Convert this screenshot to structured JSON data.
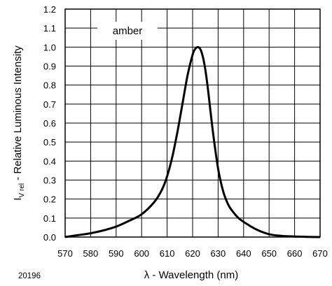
{
  "chart_data": {
    "type": "line",
    "title": "",
    "xlabel": "λ - Wavelength (nm)",
    "ylabel_main": "I",
    "ylabel_sub": "V rel",
    "ylabel_rest": " - Relative Luminous Intensity",
    "xlim": [
      570,
      670
    ],
    "ylim": [
      0,
      1.2
    ],
    "xticks": [
      "570",
      "580",
      "590",
      "600",
      "610",
      "620",
      "630",
      "640",
      "650",
      "660",
      "670"
    ],
    "yticks": [
      "0.0",
      "0.1",
      "0.2",
      "0.3",
      "0.4",
      "0.5",
      "0.6",
      "0.7",
      "0.8",
      "0.9",
      "1.0",
      "1.1",
      "1.2"
    ],
    "grid": true,
    "annotation": "amber",
    "figure_id": "20196",
    "series": [
      {
        "x": [
          570,
          575,
          580,
          585,
          590,
          595,
          600,
          605,
          608,
          610,
          612,
          614,
          616,
          618,
          620,
          621,
          622,
          623,
          624,
          625,
          626,
          628,
          630,
          632,
          634,
          636,
          638,
          640,
          645,
          650,
          655,
          660,
          665,
          670
        ],
        "y": [
          0.0,
          0.01,
          0.02,
          0.035,
          0.055,
          0.085,
          0.12,
          0.185,
          0.25,
          0.32,
          0.42,
          0.55,
          0.7,
          0.85,
          0.96,
          0.99,
          1.0,
          0.99,
          0.95,
          0.88,
          0.78,
          0.55,
          0.36,
          0.24,
          0.17,
          0.13,
          0.1,
          0.08,
          0.04,
          0.015,
          0.006,
          0.003,
          0.001,
          0.0
        ]
      }
    ]
  }
}
